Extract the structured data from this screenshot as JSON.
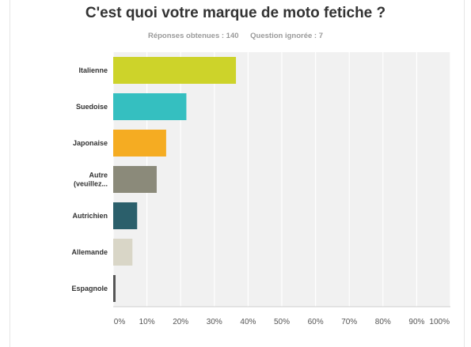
{
  "header": {
    "title": "C'est quoi votre marque de moto fetiche ?",
    "answered": "Réponses obtenues : 140",
    "skipped": "Question ignorée : 7"
  },
  "chart_data": {
    "type": "bar",
    "orientation": "horizontal",
    "title": "C'est quoi votre marque de moto fetiche ?",
    "categories": [
      [
        "Italienne"
      ],
      [
        "Suedoise"
      ],
      [
        "Japonaise"
      ],
      [
        "Autre",
        "(veuillez..."
      ],
      [
        "Autrichien"
      ],
      [
        "Allemande"
      ],
      [
        "Espagnole"
      ]
    ],
    "values": [
      36.4,
      21.7,
      15.7,
      12.9,
      7.1,
      5.7,
      0.7
    ],
    "colors": [
      "#cdd32a",
      "#35bfc0",
      "#f5ac22",
      "#8b8a7a",
      "#2b5f6b",
      "#d9d6c7",
      "#555555"
    ],
    "xlim": [
      0,
      100
    ],
    "xticks": [
      "0%",
      "10%",
      "20%",
      "30%",
      "40%",
      "50%",
      "60%",
      "70%",
      "80%",
      "90%",
      "100%"
    ],
    "grid": true
  }
}
